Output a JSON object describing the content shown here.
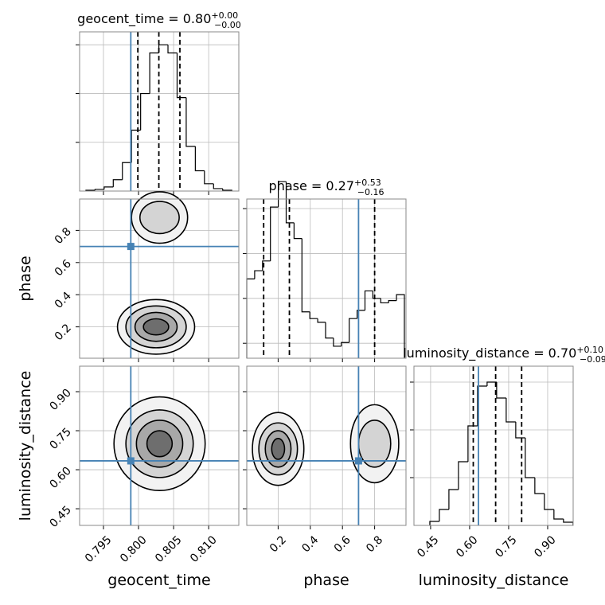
{
  "chart_data": {
    "type": "corner",
    "parameters": [
      {
        "label": "geocent_time",
        "lim": [
          0.7916,
          0.8143
        ],
        "ticks": [
          0.795,
          {
            "value": 0.8,
            "label": "0.800"
          },
          0.805,
          {
            "value": 0.81,
            "label": "0.810"
          }
        ],
        "truth": 0.7989,
        "quantiles": [
          0.7999,
          0.8029,
          0.8059
        ],
        "title": "geocent_time = 0.80",
        "title_sup": "+0.00",
        "title_sub": "−0.00",
        "bins": [
          0.7925,
          0.7938,
          0.7951,
          0.7964,
          0.7977,
          0.799,
          0.8003,
          0.8016,
          0.8029,
          0.8042,
          0.8055,
          0.8068,
          0.8081,
          0.8094,
          0.8107,
          0.812,
          0.8133
        ],
        "counts": [
          1,
          2,
          5,
          14,
          35,
          75,
          120,
          170,
          180,
          170,
          115,
          55,
          25,
          9,
          3,
          1
        ],
        "hist_ylim": [
          0,
          196
        ],
        "hist_yticks": [
          60,
          120,
          180
        ]
      },
      {
        "label": "phase",
        "lim": [
          0.005,
          0.995
        ],
        "ticks": [
          0.2,
          0.4,
          0.6,
          0.8
        ],
        "truth": 0.7,
        "quantiles": [
          0.11,
          0.27,
          0.8
        ],
        "title": "phase = 0.27",
        "title_sup": "+0.53",
        "title_sub": "−0.16",
        "bins": [
          0.005,
          0.054,
          0.103,
          0.152,
          0.201,
          0.25,
          0.299,
          0.348,
          0.397,
          0.446,
          0.495,
          0.544,
          0.593,
          0.642,
          0.691,
          0.74,
          0.789,
          0.838,
          0.887,
          0.936,
          0.985
        ],
        "counts": [
          530,
          585,
          650,
          1010,
          1180,
          905,
          800,
          310,
          265,
          240,
          135,
          80,
          105,
          265,
          320,
          450,
          400,
          370,
          385,
          425
        ],
        "hist_ylim": [
          0,
          1064
        ],
        "hist_yticks": [
          100,
          400,
          700,
          1000
        ]
      },
      {
        "label": "luminosity_distance",
        "lim": [
          0.386,
          0.998
        ],
        "ticks": [
          0.45,
          {
            "value": 0.6,
            "label": "0.60"
          },
          0.75,
          {
            "value": 0.9,
            "label": "0.90"
          }
        ],
        "truth": 0.634,
        "quantiles": [
          0.614,
          0.7,
          0.8
        ],
        "title": "luminosity_distance = 0.70",
        "title_sup": "+0.10",
        "title_sub": "−0.09",
        "bins": [
          0.447,
          0.4837,
          0.5204,
          0.5571,
          0.5938,
          0.6305,
          0.6672,
          0.7039,
          0.7406,
          0.7773,
          0.814,
          0.8507,
          0.8874,
          0.9241,
          0.9608,
          0.9975
        ],
        "counts": [
          5,
          20,
          45,
          80,
          125,
          175,
          180,
          160,
          130,
          110,
          60,
          40,
          20,
          8,
          4
        ],
        "hist_ylim": [
          0,
          200
        ],
        "hist_yticks": [
          60,
          120,
          180
        ]
      }
    ],
    "contours": [
      {
        "x": 0,
        "y": 1,
        "blobs": [
          {
            "cx": 0.8025,
            "cy": 0.2,
            "rx": [
              0.0055,
              0.0043,
              0.003,
              0.0018
            ],
            "ry": [
              0.17,
              0.13,
              0.09,
              0.05
            ]
          },
          {
            "cx": 0.803,
            "cy": 0.88,
            "rx": [
              0.004,
              0.0028
            ],
            "ry": [
              0.16,
              0.1
            ]
          }
        ]
      },
      {
        "x": 0,
        "y": 2,
        "blobs": [
          {
            "cx": 0.803,
            "cy": 0.7,
            "rx": [
              0.0065,
              0.0048,
              0.0033,
              0.0018
            ],
            "ry": [
              0.18,
              0.13,
              0.09,
              0.05
            ]
          }
        ]
      },
      {
        "x": 1,
        "y": 2,
        "blobs": [
          {
            "cx": 0.2,
            "cy": 0.68,
            "rx": [
              0.16,
              0.12,
              0.08,
              0.04
            ],
            "ry": [
              0.14,
              0.1,
              0.07,
              0.04
            ]
          },
          {
            "cx": 0.8,
            "cy": 0.7,
            "rx": [
              0.15,
              0.1
            ],
            "ry": [
              0.15,
              0.09
            ]
          }
        ]
      }
    ],
    "grid": true,
    "truth_color": "#4682b4",
    "line_color": "#000000"
  }
}
